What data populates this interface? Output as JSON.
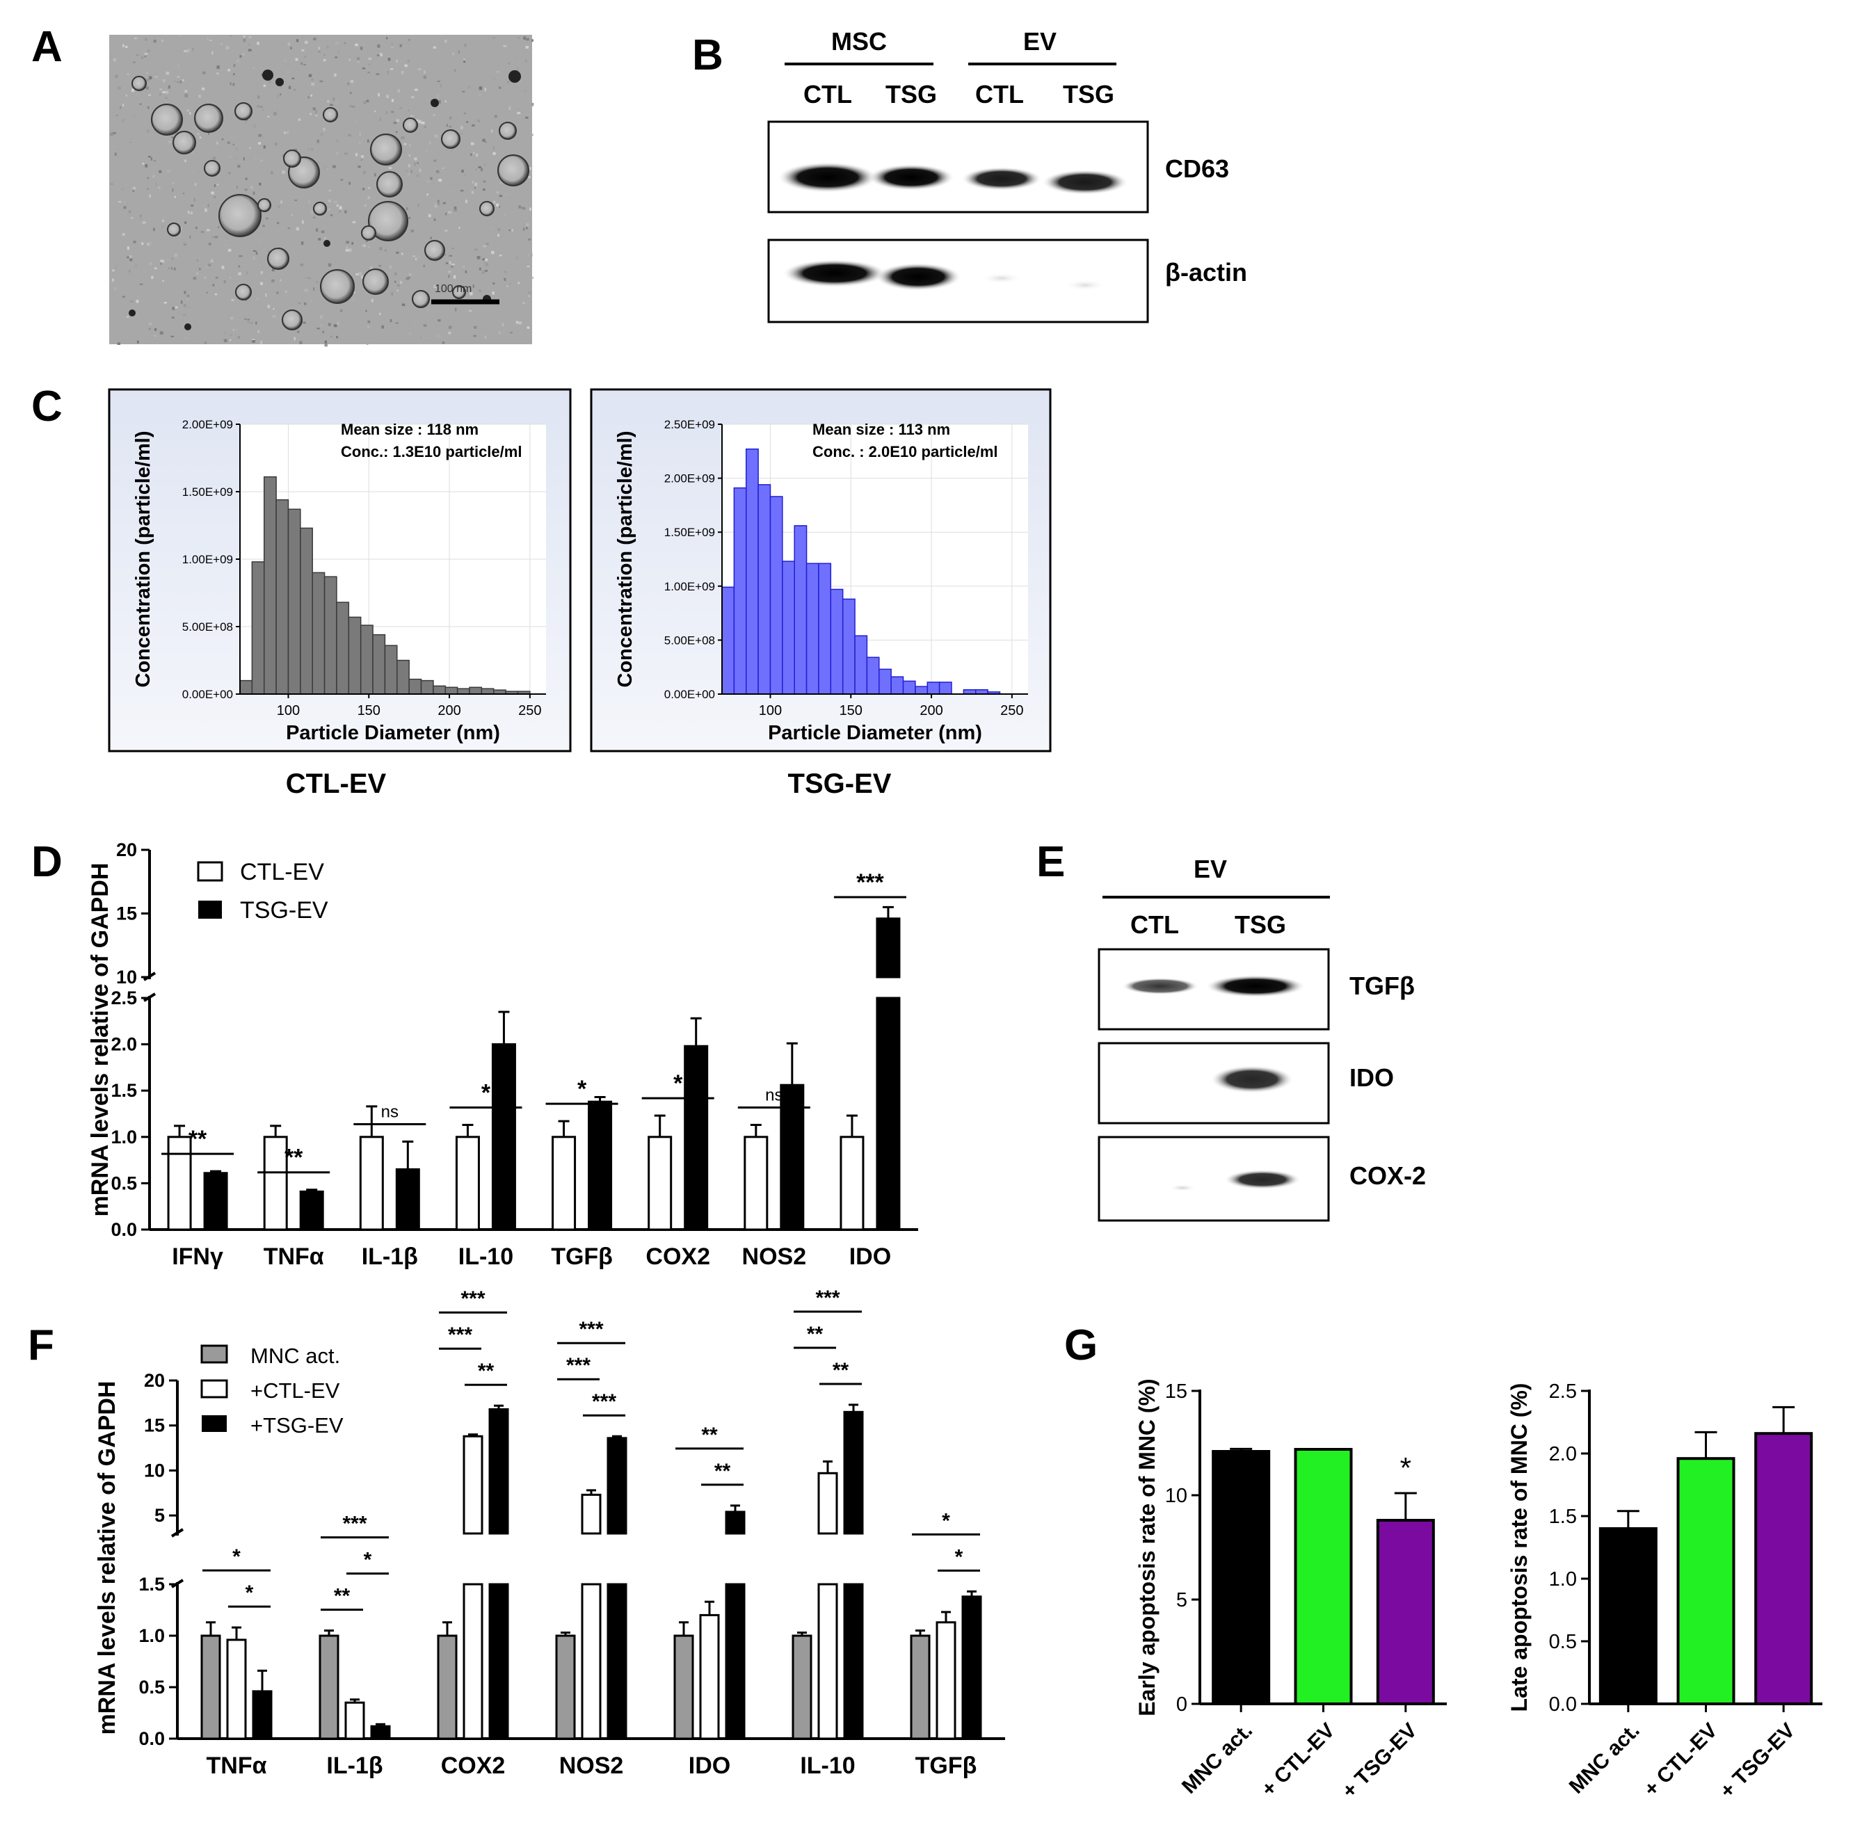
{
  "panel_letters": {
    "A": "A",
    "B": "B",
    "C": "C",
    "D": "D",
    "E": "E",
    "F": "F",
    "G": "G"
  },
  "panel_a": {
    "scale_bar": "100 nm"
  },
  "panel_b": {
    "groups": [
      "MSC",
      "EV"
    ],
    "lanes": [
      "CTL",
      "TSG",
      "CTL",
      "TSG"
    ],
    "blots": [
      "CD63",
      "β-actin"
    ]
  },
  "panel_e": {
    "group": "EV",
    "lanes": [
      "CTL",
      "TSG"
    ],
    "blots": [
      "TGFβ",
      "IDO",
      "COX-2"
    ]
  },
  "colors": {
    "ctl": "#7a7a7a",
    "tsg": "#7070ff",
    "green": "#22f022",
    "purple": "#7a0aa0",
    "gray": "#9a9a9a"
  },
  "chart_data": [
    {
      "id": "C-left",
      "type": "bar",
      "title": "CTL-EV",
      "annotation": [
        "Mean size  : 118 nm",
        "Conc.: 1.3E10 particle/ml"
      ],
      "xlabel": "Particle Diameter (nm)",
      "ylabel": "Concentration (particle/ml)",
      "xlim": [
        70,
        260
      ],
      "ylim": [
        0,
        2000000000
      ],
      "xticks": [
        100,
        150,
        200,
        250
      ],
      "yticks": [
        "0.00E+00",
        "5.00E+08",
        "1.00E+09",
        "1.50E+09",
        "2.00E+09"
      ],
      "bin_width": 7.5,
      "bin_start": 70,
      "values": [
        0.1,
        0.98,
        1.61,
        1.44,
        1.37,
        1.23,
        0.9,
        0.87,
        0.68,
        0.57,
        0.51,
        0.44,
        0.36,
        0.25,
        0.11,
        0.1,
        0.06,
        0.05,
        0.04,
        0.05,
        0.04,
        0.03,
        0.02,
        0.02
      ],
      "value_unit": "1E9 particle/ml"
    },
    {
      "id": "C-right",
      "type": "bar",
      "title": "TSG-EV",
      "annotation": [
        "Mean size : 113 nm",
        "Conc. : 2.0E10 particle/ml"
      ],
      "xlabel": "Particle Diameter (nm)",
      "ylabel": "Concentration (particle/ml)",
      "xlim": [
        70,
        260
      ],
      "ylim": [
        0,
        2500000000
      ],
      "xticks": [
        100,
        150,
        200,
        250
      ],
      "yticks": [
        "0.00E+00",
        "5.00E+08",
        "1.00E+09",
        "1.50E+09",
        "2.00E+09",
        "2.50E+09"
      ],
      "bin_width": 7.5,
      "bin_start": 70,
      "values": [
        0.99,
        1.91,
        2.27,
        1.94,
        1.83,
        1.23,
        1.56,
        1.21,
        1.21,
        0.97,
        0.88,
        0.54,
        0.34,
        0.23,
        0.16,
        0.12,
        0.07,
        0.11,
        0.11,
        0.0,
        0.04,
        0.04,
        0.02,
        0.0
      ],
      "value_unit": "1E9 particle/ml"
    },
    {
      "id": "D",
      "type": "bar",
      "ylabel": "mRNA levels relative of GAPDH",
      "categories": [
        "IFNγ",
        "TNFα",
        "IL-1β",
        "IL-10",
        "TGFβ",
        "COX2",
        "NOS2",
        "IDO"
      ],
      "legend": [
        "CTL-EV",
        "TSG-EV"
      ],
      "series": [
        {
          "name": "CTL-EV",
          "values": [
            1.0,
            1.0,
            1.0,
            1.0,
            1.0,
            1.0,
            1.0,
            1.0
          ],
          "errors": [
            0.12,
            0.12,
            0.33,
            0.13,
            0.17,
            0.23,
            0.13,
            0.23
          ]
        },
        {
          "name": "TSG-EV",
          "values": [
            0.61,
            0.41,
            0.65,
            2.0,
            1.38,
            1.98,
            1.56,
            14.6
          ],
          "errors": [
            0.02,
            0.02,
            0.3,
            0.35,
            0.05,
            0.3,
            0.45,
            0.9
          ]
        }
      ],
      "significance": [
        "**",
        "**",
        "ns",
        "*",
        "*",
        "*",
        "ns",
        "***"
      ],
      "broken_axis": {
        "lower": [
          0,
          2.5
        ],
        "upper": [
          10,
          20
        ]
      },
      "yticks_lower": [
        "0.0",
        "0.5",
        "1.0",
        "1.5",
        "2.0",
        "2.5"
      ],
      "yticks_upper": [
        "10",
        "15",
        "20"
      ]
    },
    {
      "id": "F",
      "type": "bar",
      "ylabel": "mRNA levels relative of GAPDH",
      "categories": [
        "TNFα",
        "IL-1β",
        "COX2",
        "NOS2",
        "IDO",
        "IL-10",
        "TGFβ"
      ],
      "legend": [
        "MNC act.",
        "+CTL-EV",
        "+TSG-EV"
      ],
      "series": [
        {
          "name": "MNC act.",
          "values": [
            1.0,
            1.0,
            1.0,
            1.0,
            1.0,
            1.0,
            1.0
          ],
          "errors": [
            0.13,
            0.05,
            0.13,
            0.03,
            0.13,
            0.03,
            0.05
          ]
        },
        {
          "name": "+CTL-EV",
          "values": [
            0.96,
            0.35,
            13.8,
            7.3,
            1.2,
            9.7,
            1.13
          ],
          "errors": [
            0.12,
            0.03,
            0.2,
            0.5,
            0.13,
            1.3,
            0.1
          ]
        },
        {
          "name": "+TSG-EV",
          "values": [
            0.46,
            0.12,
            16.8,
            13.6,
            5.4,
            16.5,
            1.38
          ],
          "errors": [
            0.2,
            0.02,
            0.4,
            0.2,
            0.7,
            0.8,
            0.05
          ]
        }
      ],
      "significance": [
        {
          "cat": "TNFα",
          "pairs": [
            [
              "*",
              "MNC act.",
              "+TSG-EV"
            ],
            [
              "*",
              "+CTL-EV",
              "+TSG-EV"
            ]
          ]
        },
        {
          "cat": "IL-1β",
          "pairs": [
            [
              "***",
              "MNC act.",
              "+TSG-EV"
            ],
            [
              "**",
              "MNC act.",
              "+CTL-EV"
            ],
            [
              "*",
              "+CTL-EV",
              "+TSG-EV"
            ]
          ]
        },
        {
          "cat": "COX2",
          "pairs": [
            [
              "***",
              "MNC act.",
              "+TSG-EV"
            ],
            [
              "**",
              "+CTL-EV",
              "+TSG-EV"
            ],
            [
              "***",
              "MNC act.",
              "+CTL-EV"
            ]
          ]
        },
        {
          "cat": "NOS2",
          "pairs": [
            [
              "***",
              "MNC act.",
              "+TSG-EV"
            ],
            [
              "***",
              "+CTL-EV",
              "+TSG-EV"
            ],
            [
              "***",
              "MNC act.",
              "+CTL-EV"
            ]
          ]
        },
        {
          "cat": "IDO",
          "pairs": [
            [
              "**",
              "MNC act.",
              "+TSG-EV"
            ],
            [
              "**",
              "+CTL-EV",
              "+TSG-EV"
            ]
          ]
        },
        {
          "cat": "IL-10",
          "pairs": [
            [
              "***",
              "MNC act.",
              "+TSG-EV"
            ],
            [
              "**",
              "+CTL-EV",
              "+TSG-EV"
            ],
            [
              "**",
              "MNC act.",
              "+CTL-EV"
            ]
          ]
        },
        {
          "cat": "TGFβ",
          "pairs": [
            [
              "*",
              "MNC act.",
              "+TSG-EV"
            ],
            [
              "*",
              "+CTL-EV",
              "+TSG-EV"
            ]
          ]
        }
      ],
      "broken_axis": {
        "lower": [
          0,
          1.5
        ],
        "upper": [
          3,
          20
        ]
      },
      "yticks_lower": [
        "0.0",
        "0.5",
        "1.0",
        "1.5"
      ],
      "yticks_upper": [
        "5",
        "10",
        "15",
        "20"
      ]
    },
    {
      "id": "G-early",
      "type": "bar",
      "ylabel": "Early apoptosis rate of MNC (%)",
      "categories": [
        "MNC act.",
        "+ CTL-EV",
        "+ TSG-EV"
      ],
      "values": [
        12.1,
        12.2,
        8.8
      ],
      "errors": [
        0.12,
        0.0,
        1.3
      ],
      "significance": [
        "",
        "",
        "*"
      ],
      "ylim": [
        0,
        15
      ],
      "yticks": [
        "0",
        "5",
        "10",
        "15"
      ]
    },
    {
      "id": "G-late",
      "type": "bar",
      "ylabel": "Late apoptosis rate of MNC (%)",
      "categories": [
        "MNC act.",
        "+ CTL-EV",
        "+ TSG-EV"
      ],
      "values": [
        1.4,
        1.96,
        2.16
      ],
      "errors": [
        0.14,
        0.21,
        0.21
      ],
      "ylim": [
        0,
        2.5
      ],
      "yticks": [
        "0.0",
        "0.5",
        "1.0",
        "1.5",
        "2.0",
        "2.5"
      ]
    }
  ]
}
